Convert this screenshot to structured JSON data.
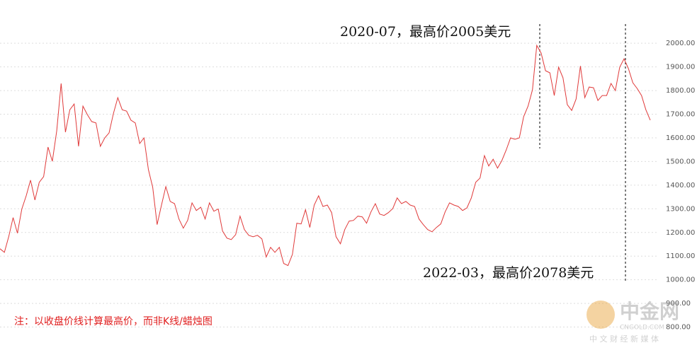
{
  "chart_data": {
    "type": "line",
    "annotations": [
      "2020-07，最高价2005美元",
      "2022-03，最高价2078美元"
    ],
    "note": "注：以收盘价线计算最高价，而非K线/蜡烛图",
    "watermark": {
      "logo": "中金网",
      "site": "CNGOLD.COM",
      "slogan": "中 文 财 经 新 媒 体"
    },
    "series": [
      {
        "color": "#e03a3a",
        "values": [
          1131,
          1116,
          1182,
          1263,
          1197,
          1299,
          1355,
          1421,
          1337,
          1412,
          1436,
          1561,
          1501,
          1630,
          1830,
          1624,
          1719,
          1743,
          1564,
          1734,
          1699,
          1669,
          1663,
          1564,
          1600,
          1621,
          1704,
          1770,
          1719,
          1713,
          1675,
          1663,
          1576,
          1600,
          1466,
          1391,
          1233,
          1316,
          1394,
          1331,
          1322,
          1257,
          1218,
          1251,
          1325,
          1293,
          1307,
          1257,
          1325,
          1290,
          1299,
          1206,
          1176,
          1170,
          1191,
          1269,
          1212,
          1188,
          1182,
          1188,
          1173,
          1096,
          1137,
          1116,
          1137,
          1069,
          1060,
          1107,
          1239,
          1236,
          1296,
          1221,
          1316,
          1355,
          1310,
          1316,
          1284,
          1182,
          1152,
          1212,
          1248,
          1251,
          1269,
          1266,
          1239,
          1287,
          1322,
          1278,
          1272,
          1284,
          1301,
          1346,
          1322,
          1331,
          1316,
          1310,
          1257,
          1233,
          1212,
          1203,
          1221,
          1236,
          1287,
          1325,
          1316,
          1310,
          1293,
          1304,
          1346,
          1412,
          1430,
          1525,
          1481,
          1510,
          1472,
          1504,
          1549,
          1600,
          1594,
          1600,
          1690,
          1734,
          1803,
          1991,
          1958,
          1884,
          1875,
          1779,
          1899,
          1854,
          1740,
          1716,
          1764,
          1904,
          1770,
          1815,
          1812,
          1758,
          1779,
          1779,
          1830,
          1800,
          1899,
          1934,
          1893,
          1833,
          1809,
          1779,
          1719,
          1675
        ]
      }
    ],
    "ylim": [
      700,
      2150
    ],
    "yticks": [
      {
        "value": 800,
        "label": "800.00"
      },
      {
        "value": 900,
        "label": "900.00"
      },
      {
        "value": 1000,
        "label": "1000.00"
      },
      {
        "value": 1100,
        "label": "1100.00"
      },
      {
        "value": 1200,
        "label": "1200.00"
      },
      {
        "value": 1300,
        "label": "1300.00"
      },
      {
        "value": 1400,
        "label": "1400.00"
      },
      {
        "value": 1500,
        "label": "1500.00"
      },
      {
        "value": 1600,
        "label": "1600.00"
      },
      {
        "value": 1700,
        "label": "1700.00"
      },
      {
        "value": 1800,
        "label": "1800.00"
      },
      {
        "value": 1900,
        "label": "1900.00"
      },
      {
        "value": 2000,
        "label": "2000.00"
      }
    ],
    "grid": true
  }
}
